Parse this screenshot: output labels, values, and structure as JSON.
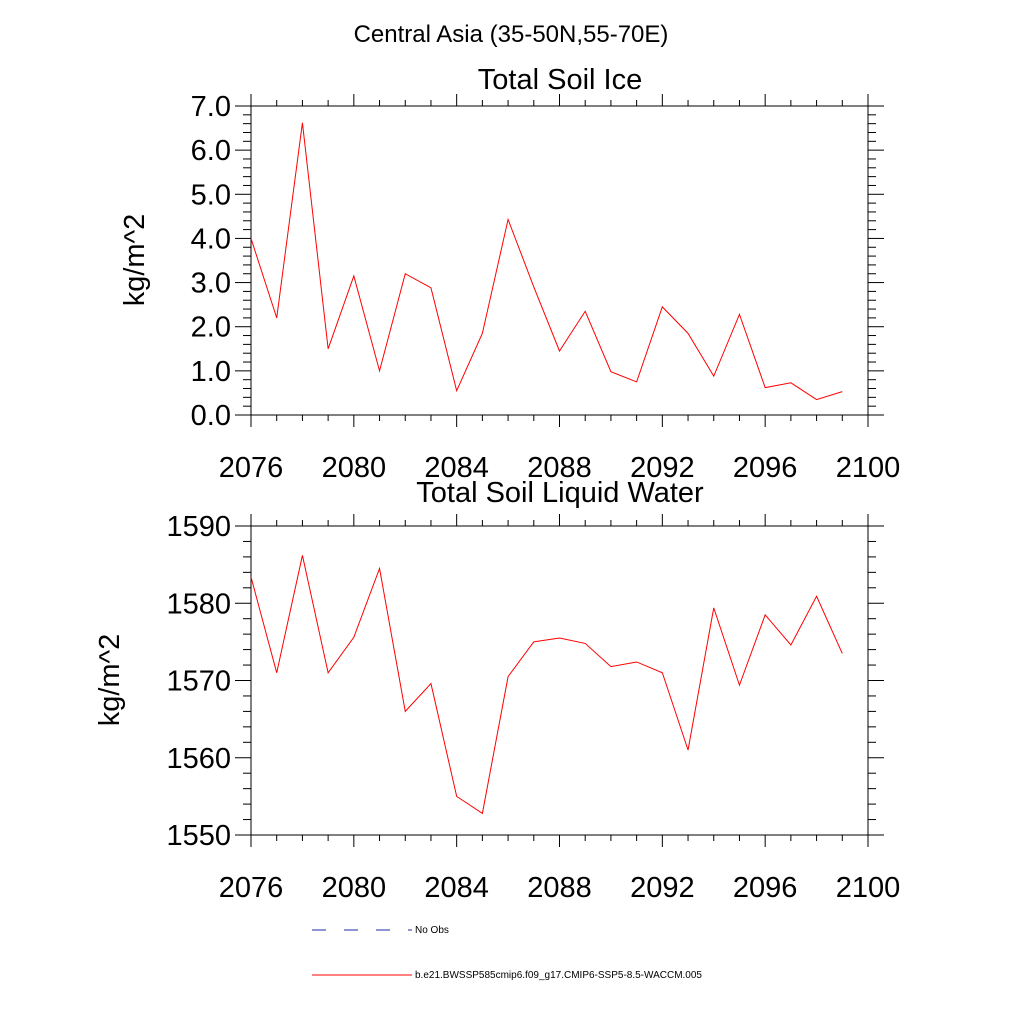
{
  "figure_title": "Central Asia (35-50N,55-70E)",
  "colors": {
    "model_line": "#ff0000",
    "obs_line": "#1f2aa6",
    "axis": "#000000"
  },
  "legend": [
    {
      "label": "No Obs",
      "style": "dashed",
      "color": "#1f2aa6"
    },
    {
      "label": "b.e21.BWSSP585cmip6.f09_g17.CMIP6-SSP5-8.5-WACCM.005",
      "style": "solid",
      "color": "#ff0000"
    }
  ],
  "chart_data": [
    {
      "type": "line",
      "title": "Total Soil Ice",
      "xlabel": "",
      "ylabel": "kg/m^2",
      "xlim": [
        2076,
        2100
      ],
      "ylim": [
        0,
        7
      ],
      "xticks": [
        2076,
        2080,
        2084,
        2088,
        2092,
        2096,
        2100
      ],
      "xtick_labels": [
        "2076",
        "2080",
        "2084",
        "2088",
        "2092",
        "2096",
        "2100"
      ],
      "yticks": [
        0,
        1,
        2,
        3,
        4,
        5,
        6,
        7
      ],
      "ytick_labels": [
        "0.0",
        "1.0",
        "2.0",
        "3.0",
        "4.0",
        "5.0",
        "6.0",
        "7.0"
      ],
      "grid": false,
      "series": [
        {
          "name": "b.e21.BWSSP585cmip6.f09_g17.CMIP6-SSP5-8.5-WACCM.005",
          "x": [
            2076,
            2077,
            2078,
            2079,
            2080,
            2081,
            2082,
            2083,
            2084,
            2085,
            2086,
            2087,
            2088,
            2089,
            2090,
            2091,
            2092,
            2093,
            2094,
            2095,
            2096,
            2097,
            2098,
            2099
          ],
          "values": [
            4.0,
            2.2,
            6.62,
            1.5,
            3.15,
            1.0,
            3.2,
            2.88,
            0.55,
            1.85,
            4.43,
            2.9,
            1.45,
            2.35,
            0.98,
            0.75,
            2.45,
            1.85,
            0.88,
            2.28,
            0.62,
            0.73,
            0.35,
            0.53
          ]
        }
      ]
    },
    {
      "type": "line",
      "title": "Total Soil Liquid Water",
      "xlabel": "",
      "ylabel": "kg/m^2",
      "xlim": [
        2076,
        2100
      ],
      "ylim": [
        1550,
        1590
      ],
      "xticks": [
        2076,
        2080,
        2084,
        2088,
        2092,
        2096,
        2100
      ],
      "xtick_labels": [
        "2076",
        "2080",
        "2084",
        "2088",
        "2092",
        "2096",
        "2100"
      ],
      "yticks": [
        1550,
        1560,
        1570,
        1580,
        1590
      ],
      "ytick_labels": [
        "1550",
        "1560",
        "1570",
        "1580",
        "1590"
      ],
      "grid": false,
      "series": [
        {
          "name": "b.e21.BWSSP585cmip6.f09_g17.CMIP6-SSP5-8.5-WACCM.005",
          "x": [
            2076,
            2077,
            2078,
            2079,
            2080,
            2081,
            2082,
            2083,
            2084,
            2085,
            2086,
            2087,
            2088,
            2089,
            2090,
            2091,
            2092,
            2093,
            2094,
            2095,
            2096,
            2097,
            2098,
            2099
          ],
          "values": [
            1583.4,
            1571.0,
            1586.2,
            1571.0,
            1575.6,
            1584.5,
            1566.0,
            1569.6,
            1555.0,
            1552.8,
            1570.5,
            1575.0,
            1575.5,
            1574.8,
            1571.8,
            1572.4,
            1571.0,
            1561.0,
            1579.4,
            1569.4,
            1578.5,
            1574.6,
            1580.9,
            1573.5
          ]
        }
      ]
    }
  ]
}
